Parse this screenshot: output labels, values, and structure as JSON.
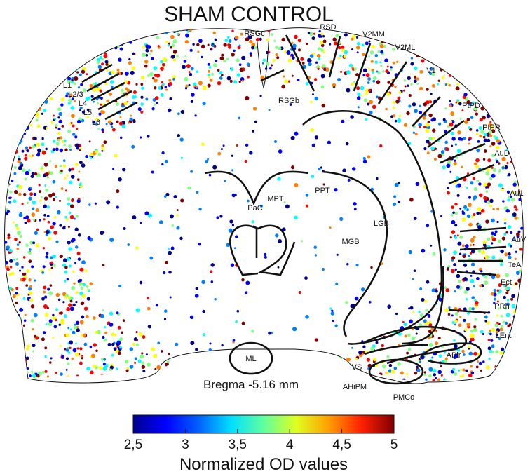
{
  "title": "SHAM CONTROL",
  "bregma": "Bregma -5.16 mm",
  "region_labels": {
    "RSGc": "RSGc",
    "RSD": "RSD",
    "V2MM": "V2MM",
    "V2ML": "V2ML",
    "V1": "V1",
    "PtPD": "PtPD",
    "PtPR": "PtPR",
    "AuD": "AuD",
    "Au1": "Au1",
    "AuV": "AuV",
    "TeA": "TeA",
    "Ect": "Ect",
    "PRh": "PRh",
    "LEnt": "LEnt",
    "APir": "APir",
    "PMCo": "PMCo",
    "AHiPM": "AHiPM",
    "VS": "VS",
    "ML": "ML",
    "RSGb": "RSGb",
    "MPT": "MPT",
    "PPT": "PPT",
    "PaC": "PaC",
    "LGB": "LGB",
    "MGB": "MGB"
  },
  "layer_labels": {
    "L1": "L1",
    "L2_3": "L2/3",
    "L4": "L4",
    "L5": "L5",
    "L6": "L6"
  },
  "colorbar": {
    "ticks": [
      "2,5",
      "3",
      "3,5",
      "4",
      "4,5",
      "5"
    ],
    "min": 2.5,
    "max": 5,
    "label": "Normalized OD values",
    "colormap": "jet"
  },
  "colors": {
    "outline": "#111111",
    "dot_palette": [
      "#00008f",
      "#0000ff",
      "#0080ff",
      "#00ffff",
      "#80ff80",
      "#ffff00",
      "#ff8000",
      "#ff0000",
      "#800000"
    ]
  }
}
